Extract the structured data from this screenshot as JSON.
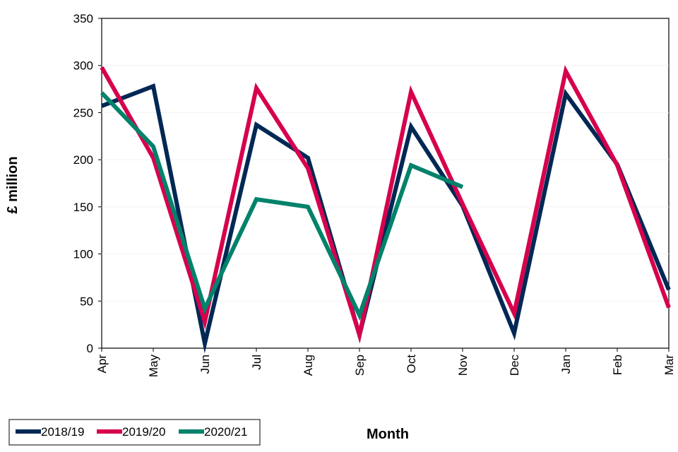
{
  "chart_data": {
    "type": "line",
    "title": "",
    "xlabel": "Month",
    "ylabel": "£ million",
    "categories": [
      "Apr",
      "May",
      "Jun",
      "Jul",
      "Aug",
      "Sep",
      "Oct",
      "Nov",
      "Dec",
      "Jan",
      "Feb",
      "Mar"
    ],
    "ylim": [
      0,
      350
    ],
    "yticks": [
      "0",
      "50",
      "100",
      "150",
      "200",
      "250",
      "300",
      "350"
    ],
    "grid": false,
    "legend_position": "bottom-left",
    "series": [
      {
        "name": "2018/19",
        "color": "#002855",
        "values": [
          257,
          278,
          5,
          237,
          202,
          14,
          235,
          151,
          16,
          270,
          195,
          62
        ]
      },
      {
        "name": "2019/20",
        "color": "#d6004d",
        "values": [
          298,
          202,
          28,
          276,
          191,
          14,
          272,
          153,
          37,
          294,
          194,
          43
        ]
      },
      {
        "name": "2020/21",
        "color": "#00826b",
        "values": [
          271,
          214,
          42,
          158,
          150,
          35,
          194,
          171,
          null,
          null,
          null,
          null
        ]
      }
    ]
  }
}
